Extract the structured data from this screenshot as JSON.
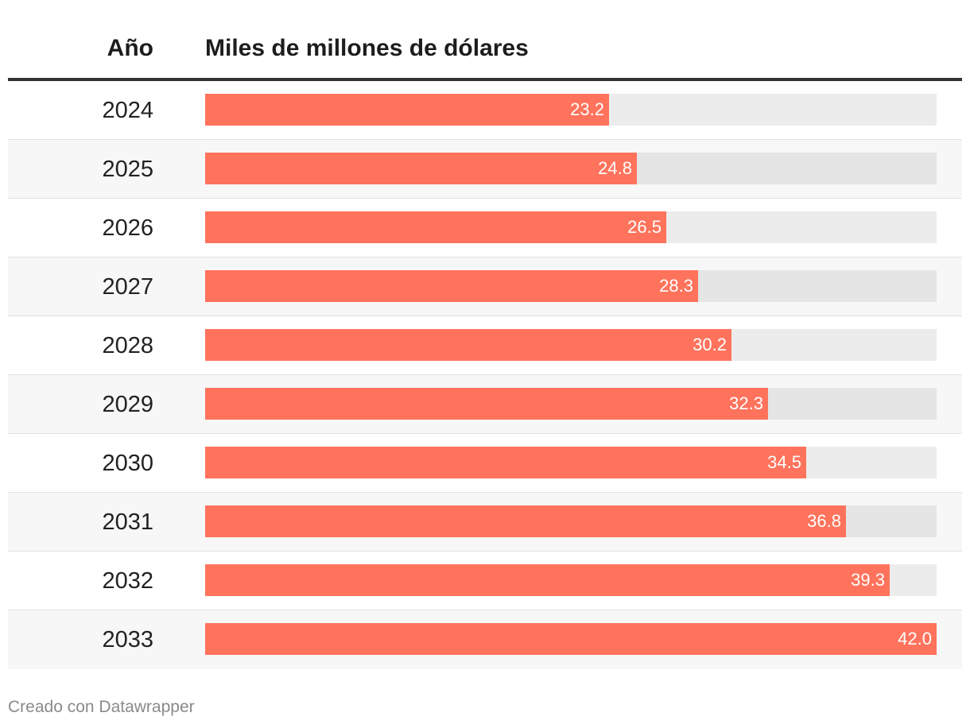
{
  "chart_data": {
    "type": "bar",
    "orientation": "horizontal",
    "columns": {
      "year_header": "Año",
      "value_header": "Miles de millones de dólares"
    },
    "categories": [
      "2024",
      "2025",
      "2026",
      "2027",
      "2028",
      "2029",
      "2030",
      "2031",
      "2032",
      "2033"
    ],
    "values": [
      23.2,
      24.8,
      26.5,
      28.3,
      30.2,
      32.3,
      34.5,
      36.8,
      39.3,
      42.0
    ],
    "value_labels": [
      "23.2",
      "24.8",
      "26.5",
      "28.3",
      "30.2",
      "32.3",
      "34.5",
      "36.8",
      "39.3",
      "42.0"
    ],
    "xlim": [
      0,
      42.0
    ],
    "bar_color": "#ff735c",
    "track_color": "#ececec"
  },
  "footer": {
    "credit": "Creado con Datawrapper"
  }
}
